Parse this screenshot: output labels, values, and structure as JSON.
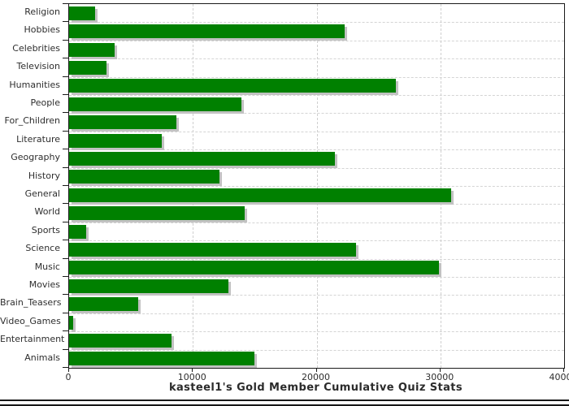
{
  "chart_data": {
    "type": "bar",
    "orientation": "horizontal",
    "title": "kasteel1's Gold Member Cumulative Quiz Stats",
    "categories": [
      "Religion",
      "Hobbies",
      "Celebrities",
      "Television",
      "Humanities",
      "People",
      "For_Children",
      "Literature",
      "Geography",
      "History",
      "General",
      "World",
      "Sports",
      "Science",
      "Music",
      "Movies",
      "Brain_Teasers",
      "Video_Games",
      "Entertainment",
      "Animals"
    ],
    "values": [
      2100,
      22250,
      3700,
      3000,
      26400,
      13900,
      8700,
      7500,
      21500,
      12150,
      30900,
      14200,
      1350,
      23200,
      29900,
      12900,
      5600,
      350,
      8300,
      15000
    ],
    "xlim": [
      0,
      40000
    ],
    "x_ticks": [
      0,
      10000,
      20000,
      30000,
      40000
    ],
    "x_tick_labels": [
      "0",
      "10000",
      "20000",
      "30000",
      "40000"
    ],
    "xlabel": "",
    "ylabel": "",
    "grid": "dashed",
    "legend": "none",
    "bar_color": "#008000",
    "bar_shadow_color": "#c2c2c2",
    "grid_color": "#d4d4d4",
    "frame_color": "#1a1a1a"
  }
}
